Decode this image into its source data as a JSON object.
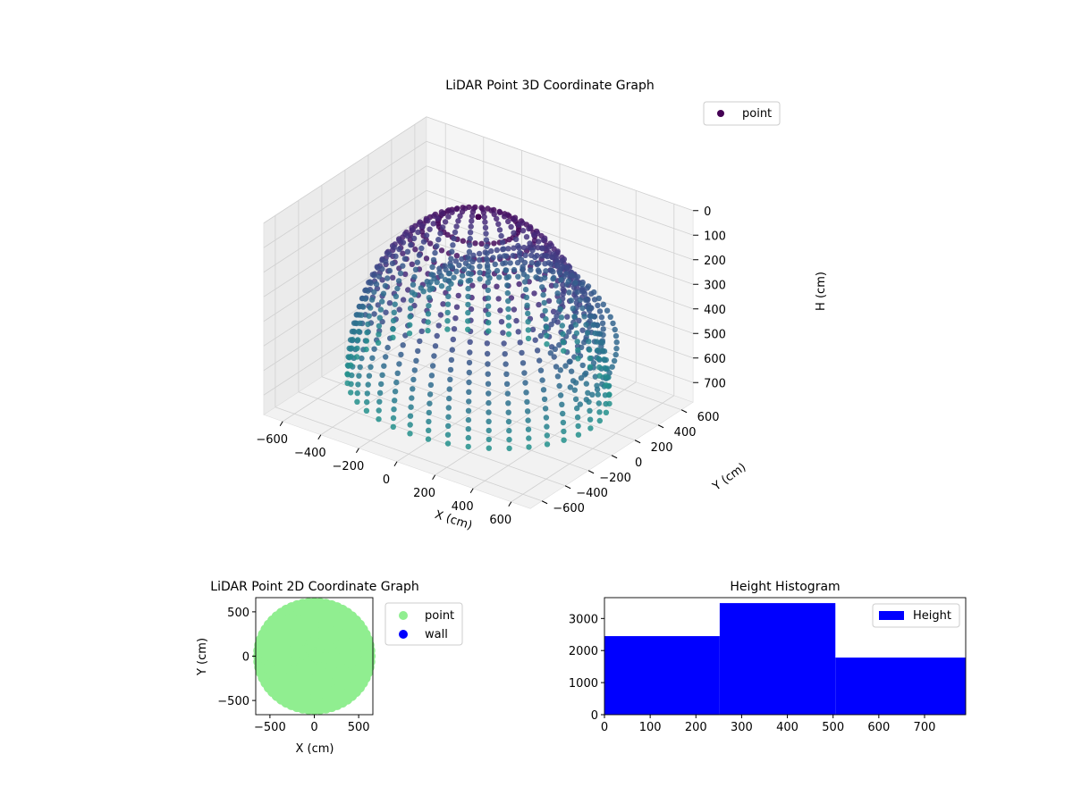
{
  "chart_data": [
    {
      "type": "scatter",
      "projection": "3d",
      "title": "LiDAR Point 3D Coordinate Graph",
      "xlabel": "X (cm)",
      "ylabel": "Y (cm)",
      "zlabel": "H (cm)",
      "xlim": [
        -700,
        700
      ],
      "ylim": [
        -700,
        700
      ],
      "zlim": [
        0,
        780
      ],
      "z_inverted": true,
      "xticks": [
        -600,
        -400,
        -200,
        0,
        200,
        400,
        600
      ],
      "yticks": [
        -600,
        -400,
        -200,
        0,
        200,
        400,
        600
      ],
      "zticks": [
        0,
        100,
        200,
        300,
        400,
        500,
        600,
        700
      ],
      "grid": true,
      "colormap": "viridis",
      "legend": {
        "position": "top-right",
        "entries": [
          {
            "label": "point",
            "color": "#440154"
          }
        ]
      },
      "series": [
        {
          "name": "point",
          "description_shape": "dense dome-shaped shell of points with arc walls",
          "radius_cm": 620,
          "height_range_cm": [
            0,
            780
          ]
        }
      ]
    },
    {
      "type": "scatter",
      "title": "LiDAR Point 2D Coordinate Graph",
      "xlabel": "X (cm)",
      "ylabel": "Y (cm)",
      "xlim": [
        -660,
        660
      ],
      "ylim": [
        -660,
        660
      ],
      "xticks": [
        -500,
        0,
        500
      ],
      "yticks": [
        -500,
        0,
        500
      ],
      "grid": false,
      "legend": {
        "position": "outside-right",
        "entries": [
          {
            "label": "point",
            "color": "#90ee90"
          },
          {
            "label": "wall",
            "color": "#0000ff"
          }
        ]
      },
      "series": [
        {
          "name": "point",
          "color": "#90ee90",
          "radius_cm": 600
        },
        {
          "name": "wall",
          "color": "#0000ff",
          "values": []
        }
      ]
    },
    {
      "type": "bar",
      "subtype": "histogram",
      "title": "Height Histogram",
      "xlabel": "",
      "ylabel": "",
      "xlim": [
        0,
        790
      ],
      "ylim": [
        0,
        3650
      ],
      "xticks": [
        0,
        100,
        200,
        300,
        400,
        500,
        600,
        700
      ],
      "yticks": [
        0,
        1000,
        2000,
        3000
      ],
      "legend": {
        "position": "top-right",
        "entries": [
          {
            "label": "Height",
            "color": "#0000ff"
          }
        ]
      },
      "bins": [
        {
          "start": 0,
          "end": 252,
          "count": 2450
        },
        {
          "start": 252,
          "end": 505,
          "count": 3480
        },
        {
          "start": 505,
          "end": 790,
          "count": 1780
        }
      ],
      "color": "#0000ff"
    }
  ]
}
